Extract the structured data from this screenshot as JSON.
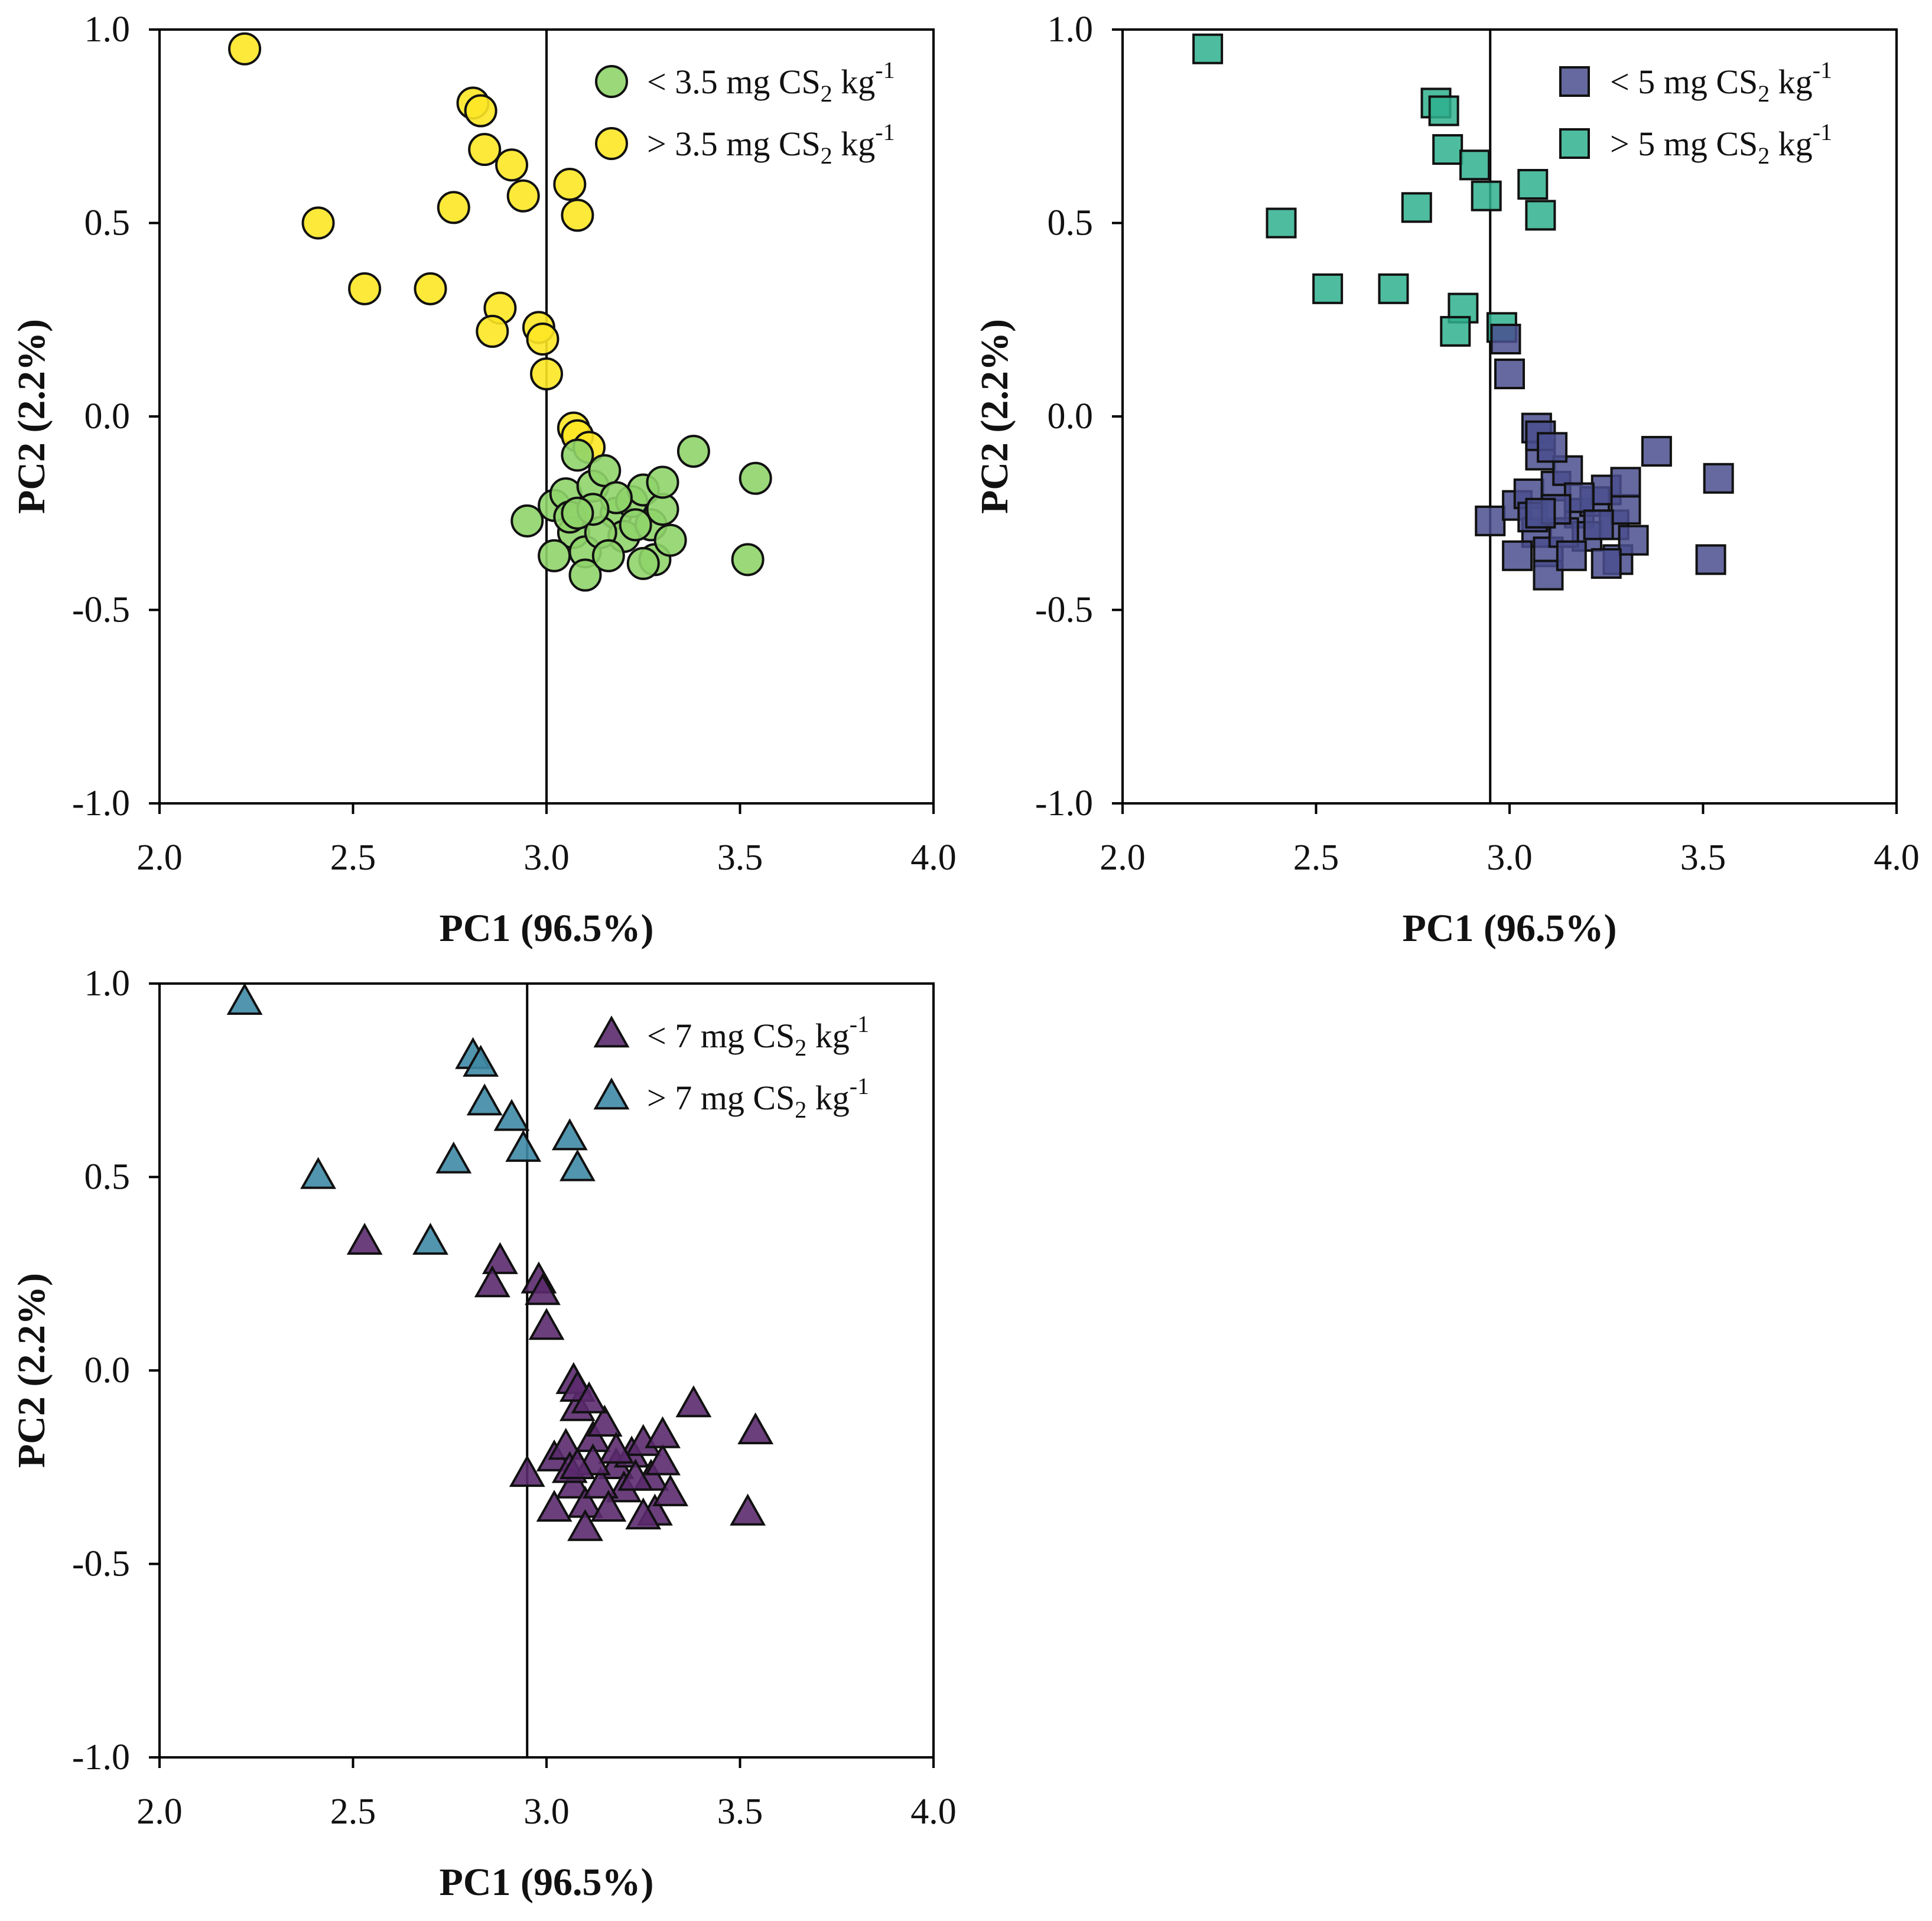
{
  "figure": {
    "panel_count": 3
  },
  "chart_data": [
    {
      "type": "scatter",
      "marker": "circle",
      "xlabel": "PC1 (96.5%)",
      "ylabel": "PC2 (2.2%)",
      "xlim": [
        2.0,
        4.0
      ],
      "ylim": [
        -1.0,
        1.0
      ],
      "xticks": [
        "2.0",
        "2.5",
        "3.0",
        "3.5",
        "4.0"
      ],
      "yticks": [
        "1.0",
        "0.5",
        "0.0",
        "-0.5",
        "-1.0"
      ],
      "threshold_x": 3.0,
      "legend_position": "top-right",
      "series": [
        {
          "name": "< 3.5 mg CS2 kg-1",
          "label_main": "< 3.5 mg CS",
          "label_sub": "2",
          "label_unit": " kg",
          "label_sup": "-1",
          "color": "#8fd46a",
          "points": [
            [
              2.95,
              -0.27
            ],
            [
              3.02,
              -0.23
            ],
            [
              3.05,
              -0.2
            ],
            [
              3.07,
              -0.3
            ],
            [
              3.08,
              -0.1
            ],
            [
              3.1,
              -0.35
            ],
            [
              3.12,
              -0.18
            ],
            [
              3.15,
              -0.14
            ],
            [
              3.18,
              -0.25
            ],
            [
              3.2,
              -0.31
            ],
            [
              3.22,
              -0.22
            ],
            [
              3.25,
              -0.19
            ],
            [
              3.27,
              -0.28
            ],
            [
              3.28,
              -0.37
            ],
            [
              3.3,
              -0.24
            ],
            [
              3.32,
              -0.32
            ],
            [
              3.38,
              -0.09
            ],
            [
              3.54,
              -0.16
            ],
            [
              3.52,
              -0.37
            ],
            [
              3.25,
              -0.38
            ],
            [
              3.1,
              -0.41
            ],
            [
              3.02,
              -0.36
            ],
            [
              3.06,
              -0.26
            ],
            [
              3.14,
              -0.3
            ],
            [
              3.18,
              -0.21
            ],
            [
              3.23,
              -0.28
            ],
            [
              3.3,
              -0.17
            ],
            [
              3.12,
              -0.24
            ],
            [
              3.08,
              -0.25
            ],
            [
              3.16,
              -0.36
            ]
          ]
        },
        {
          "name": "> 3.5 mg CS2 kg-1",
          "label_main": "> 3.5 mg CS",
          "label_sub": "2",
          "label_unit": " kg",
          "label_sup": "-1",
          "color": "#fde725",
          "points": [
            [
              2.22,
              0.95
            ],
            [
              2.41,
              0.5
            ],
            [
              2.53,
              0.33
            ],
            [
              2.7,
              0.33
            ],
            [
              2.76,
              0.54
            ],
            [
              2.81,
              0.81
            ],
            [
              2.83,
              0.79
            ],
            [
              2.84,
              0.69
            ],
            [
              2.91,
              0.65
            ],
            [
              2.94,
              0.57
            ],
            [
              3.06,
              0.6
            ],
            [
              3.08,
              0.52
            ],
            [
              2.88,
              0.28
            ],
            [
              2.86,
              0.22
            ],
            [
              2.98,
              0.23
            ],
            [
              2.99,
              0.2
            ],
            [
              3.0,
              0.11
            ],
            [
              3.07,
              -0.03
            ],
            [
              3.08,
              -0.05
            ],
            [
              3.11,
              -0.08
            ]
          ]
        }
      ]
    },
    {
      "type": "scatter",
      "marker": "square",
      "xlabel": "PC1 (96.5%)",
      "ylabel": "PC2 (2.2%)",
      "xlim": [
        2.0,
        4.0
      ],
      "ylim": [
        -1.0,
        1.0
      ],
      "xticks": [
        "2.0",
        "2.5",
        "3.0",
        "3.5",
        "4.0"
      ],
      "yticks": [
        "1.0",
        "0.5",
        "0.0",
        "-0.5",
        "-1.0"
      ],
      "threshold_x": 2.95,
      "legend_position": "top-right",
      "series": [
        {
          "name": "< 5 mg CS2 kg-1",
          "label_main": "< 5 mg CS",
          "label_sub": "2",
          "label_unit": " kg",
          "label_sup": "-1",
          "color": "#4a4f8e",
          "points": [
            [
              2.95,
              -0.27
            ],
            [
              3.02,
              -0.23
            ],
            [
              3.05,
              -0.2
            ],
            [
              3.07,
              -0.3
            ],
            [
              3.08,
              -0.1
            ],
            [
              3.1,
              -0.35
            ],
            [
              3.12,
              -0.18
            ],
            [
              3.15,
              -0.14
            ],
            [
              3.18,
              -0.25
            ],
            [
              3.2,
              -0.31
            ],
            [
              3.22,
              -0.22
            ],
            [
              3.25,
              -0.19
            ],
            [
              3.27,
              -0.28
            ],
            [
              3.28,
              -0.37
            ],
            [
              3.3,
              -0.24
            ],
            [
              3.32,
              -0.32
            ],
            [
              3.38,
              -0.09
            ],
            [
              3.54,
              -0.16
            ],
            [
              3.52,
              -0.37
            ],
            [
              3.25,
              -0.38
            ],
            [
              3.1,
              -0.41
            ],
            [
              3.02,
              -0.36
            ],
            [
              3.06,
              -0.26
            ],
            [
              3.14,
              -0.3
            ],
            [
              3.18,
              -0.21
            ],
            [
              3.23,
              -0.28
            ],
            [
              3.3,
              -0.17
            ],
            [
              3.12,
              -0.24
            ],
            [
              3.08,
              -0.25
            ],
            [
              3.16,
              -0.36
            ],
            [
              2.99,
              0.2
            ],
            [
              3.0,
              0.11
            ],
            [
              3.07,
              -0.03
            ],
            [
              3.08,
              -0.05
            ],
            [
              3.11,
              -0.08
            ]
          ]
        },
        {
          "name": "> 5 mg CS2 kg-1",
          "label_main": "> 5 mg CS",
          "label_sub": "2",
          "label_unit": " kg",
          "label_sup": "-1",
          "color": "#2fb08e",
          "points": [
            [
              2.22,
              0.95
            ],
            [
              2.41,
              0.5
            ],
            [
              2.53,
              0.33
            ],
            [
              2.7,
              0.33
            ],
            [
              2.76,
              0.54
            ],
            [
              2.81,
              0.81
            ],
            [
              2.83,
              0.79
            ],
            [
              2.84,
              0.69
            ],
            [
              2.91,
              0.65
            ],
            [
              2.94,
              0.57
            ],
            [
              3.06,
              0.6
            ],
            [
              3.08,
              0.52
            ],
            [
              2.88,
              0.28
            ],
            [
              2.86,
              0.22
            ],
            [
              2.98,
              0.23
            ]
          ]
        }
      ]
    },
    {
      "type": "scatter",
      "marker": "triangle",
      "xlabel": "PC1 (96.5%)",
      "ylabel": "PC2 (2.2%)",
      "xlim": [
        2.0,
        4.0
      ],
      "ylim": [
        -1.0,
        1.0
      ],
      "xticks": [
        "2.0",
        "2.5",
        "3.0",
        "3.5",
        "4.0"
      ],
      "yticks": [
        "1.0",
        "0.5",
        "0.0",
        "-0.5",
        "-1.0"
      ],
      "threshold_x": 2.95,
      "legend_position": "top-right",
      "series": [
        {
          "name": "< 7 mg CS2 kg-1",
          "label_main": "< 7 mg CS",
          "label_sub": "2",
          "label_unit": " kg",
          "label_sup": "-1",
          "color": "#5b2a6e",
          "points": [
            [
              2.95,
              -0.27
            ],
            [
              3.02,
              -0.23
            ],
            [
              3.05,
              -0.2
            ],
            [
              3.07,
              -0.3
            ],
            [
              3.08,
              -0.1
            ],
            [
              3.1,
              -0.35
            ],
            [
              3.12,
              -0.18
            ],
            [
              3.15,
              -0.14
            ],
            [
              3.18,
              -0.25
            ],
            [
              3.2,
              -0.31
            ],
            [
              3.22,
              -0.22
            ],
            [
              3.25,
              -0.19
            ],
            [
              3.27,
              -0.28
            ],
            [
              3.28,
              -0.37
            ],
            [
              3.3,
              -0.24
            ],
            [
              3.32,
              -0.32
            ],
            [
              3.38,
              -0.09
            ],
            [
              3.54,
              -0.16
            ],
            [
              3.52,
              -0.37
            ],
            [
              3.25,
              -0.38
            ],
            [
              3.1,
              -0.41
            ],
            [
              3.02,
              -0.36
            ],
            [
              3.06,
              -0.26
            ],
            [
              3.14,
              -0.3
            ],
            [
              3.18,
              -0.21
            ],
            [
              3.23,
              -0.28
            ],
            [
              3.3,
              -0.17
            ],
            [
              3.12,
              -0.24
            ],
            [
              3.08,
              -0.25
            ],
            [
              3.16,
              -0.36
            ],
            [
              2.53,
              0.33
            ],
            [
              2.88,
              0.28
            ],
            [
              2.86,
              0.22
            ],
            [
              2.98,
              0.23
            ],
            [
              2.99,
              0.2
            ],
            [
              3.0,
              0.11
            ],
            [
              3.07,
              -0.03
            ],
            [
              3.08,
              -0.05
            ],
            [
              3.11,
              -0.08
            ]
          ]
        },
        {
          "name": "> 7 mg CS2 kg-1",
          "label_main": "> 7 mg CS",
          "label_sub": "2",
          "label_unit": " kg",
          "label_sup": "-1",
          "color": "#3f8aa6",
          "points": [
            [
              2.22,
              0.95
            ],
            [
              2.41,
              0.5
            ],
            [
              2.7,
              0.33
            ],
            [
              2.76,
              0.54
            ],
            [
              2.81,
              0.81
            ],
            [
              2.83,
              0.79
            ],
            [
              2.84,
              0.69
            ],
            [
              2.91,
              0.65
            ],
            [
              2.94,
              0.57
            ],
            [
              3.06,
              0.6
            ],
            [
              3.08,
              0.52
            ]
          ]
        }
      ]
    }
  ]
}
